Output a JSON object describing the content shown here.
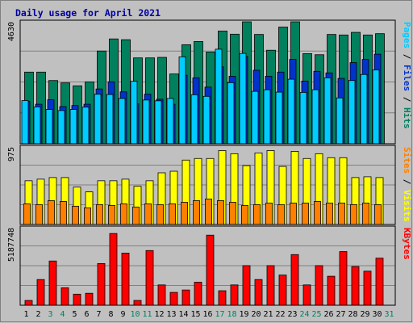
{
  "chart_data": {
    "type": "bar",
    "title": "Daily usage for April 2021",
    "x": [
      "1",
      "2",
      "3",
      "4",
      "5",
      "6",
      "7",
      "8",
      "9",
      "10",
      "11",
      "12",
      "13",
      "14",
      "15",
      "16",
      "17",
      "18",
      "19",
      "20",
      "21",
      "22",
      "23",
      "24",
      "25",
      "26",
      "27",
      "28",
      "29",
      "30",
      "31"
    ],
    "weekend_days": [
      "3",
      "4",
      "10",
      "11",
      "17",
      "18",
      "24",
      "25",
      "31"
    ],
    "panels": [
      {
        "id": "hits",
        "ymax_label": "4630",
        "ymax": 4630,
        "right_label": [
          {
            "text": "Pages",
            "color": "#00ccff"
          },
          {
            "text": "Files",
            "color": "#0033cc"
          },
          {
            "text": "Hits",
            "color": "#008060"
          }
        ],
        "series": [
          {
            "name": "Hits",
            "color": "#00805c",
            "values": [
              2720,
              2720,
              2400,
              2310,
              2200,
              2350,
              3520,
              3980,
              3950,
              3260,
              3260,
              3280,
              2650,
              3760,
              3880,
              3480,
              4280,
              4160,
              4630,
              4150,
              3550,
              4430,
              4630,
              3420,
              3380,
              4150,
              4130,
              4230,
              4130,
              4180,
              null
            ]
          },
          {
            "name": "Files",
            "color": "#0033cc",
            "values": [
              1610,
              1500,
              1670,
              1410,
              1450,
              1500,
              2080,
              2350,
              1970,
              1510,
              1880,
              1690,
              1500,
              2600,
              2500,
              2150,
              2920,
              2560,
              3310,
              2790,
              2560,
              2720,
              3200,
              2380,
              2750,
              2690,
              2480,
              3080,
              3200,
              3400,
              null
            ]
          },
          {
            "name": "Pages",
            "color": "#00ccff",
            "values": [
              1640,
              1400,
              1300,
              1260,
              1300,
              1390,
              1880,
              1870,
              1720,
              2370,
              1660,
              1630,
              1720,
              3300,
              1860,
              1800,
              3590,
              2320,
              3430,
              1990,
              2050,
              1960,
              2450,
              1950,
              2050,
              2500,
              1740,
              2400,
              2630,
              2800,
              null
            ]
          }
        ]
      },
      {
        "id": "visits",
        "ymax_label": "975",
        "ymax": 975,
        "right_label": [
          {
            "text": "Sites",
            "color": "#ff8000"
          },
          {
            "text": "Visits",
            "color": "#ffff00"
          }
        ],
        "series": [
          {
            "name": "Visits",
            "color": "#ffff00",
            "values": [
              550,
              570,
              590,
              590,
              470,
              410,
              550,
              550,
              570,
              480,
              550,
              650,
              670,
              810,
              830,
              830,
              930,
              890,
              740,
              900,
              930,
              730,
              920,
              830,
              890,
              840,
              840,
              590,
              600,
              590,
              null
            ]
          },
          {
            "name": "Sites",
            "color": "#ff8000",
            "values": [
              260,
              250,
              300,
              290,
              230,
              210,
              250,
              240,
              260,
              220,
              260,
              250,
              260,
              280,
              300,
              320,
              300,
              280,
              240,
              250,
              270,
              250,
              270,
              270,
              290,
              270,
              270,
              250,
              270,
              250,
              null
            ]
          }
        ]
      },
      {
        "id": "kbytes",
        "ymax_label": "5187748",
        "ymax": 5187748,
        "right_label": [
          {
            "text": "KBytes",
            "color": "#ff0000"
          }
        ],
        "series": [
          {
            "name": "KBytes",
            "color": "#ff0000",
            "values": [
              320000,
              1720000,
              2960000,
              1170000,
              740000,
              800000,
              2790000,
              4800000,
              3490000,
              320000,
              3660000,
              1360000,
              860000,
              1020000,
              1540000,
              4690000,
              970000,
              1360000,
              2650000,
              1720000,
              2650000,
              2020000,
              3390000,
              1360000,
              2650000,
              1940000,
              3590000,
              2590000,
              2280000,
              3150000,
              null
            ]
          }
        ]
      }
    ]
  }
}
